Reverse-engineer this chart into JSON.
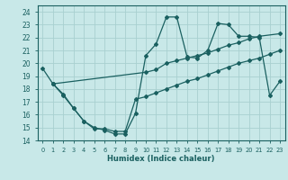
{
  "title": "",
  "xlabel": "Humidex (Indice chaleur)",
  "bg_color": "#c8e8e8",
  "grid_color": "#a8d0d0",
  "line_color": "#1a6060",
  "xlim": [
    -0.5,
    23.5
  ],
  "ylim": [
    14,
    24.5
  ],
  "yticks": [
    14,
    15,
    16,
    17,
    18,
    19,
    20,
    21,
    22,
    23,
    24
  ],
  "xticks": [
    0,
    1,
    2,
    3,
    4,
    5,
    6,
    7,
    8,
    9,
    10,
    11,
    12,
    13,
    14,
    15,
    16,
    17,
    18,
    19,
    20,
    21,
    22,
    23
  ],
  "line1_x": [
    0,
    1,
    2,
    3,
    4,
    5,
    6,
    7,
    8,
    9,
    10,
    11,
    12,
    13,
    14,
    15,
    16,
    17,
    18,
    19,
    20,
    21,
    22,
    23
  ],
  "line1_y": [
    19.6,
    18.4,
    17.5,
    16.5,
    15.5,
    15.0,
    14.8,
    14.5,
    14.5,
    16.1,
    20.6,
    21.5,
    23.6,
    23.6,
    20.5,
    20.4,
    21.0,
    23.1,
    23.0,
    22.1,
    22.1,
    22.0,
    17.5,
    18.6
  ],
  "line2_x": [
    1,
    10,
    11,
    12,
    13,
    14,
    15,
    16,
    17,
    18,
    19,
    20,
    21,
    23
  ],
  "line2_y": [
    18.4,
    19.3,
    19.5,
    20.0,
    20.2,
    20.4,
    20.6,
    20.8,
    21.1,
    21.4,
    21.6,
    21.9,
    22.1,
    22.3
  ],
  "line3_x": [
    1,
    2,
    3,
    4,
    5,
    6,
    7,
    8,
    9,
    10,
    11,
    12,
    13,
    14,
    15,
    16,
    17,
    18,
    19,
    20,
    21,
    22,
    23
  ],
  "line3_y": [
    18.4,
    17.6,
    16.5,
    15.5,
    14.9,
    14.9,
    14.7,
    14.7,
    17.2,
    17.4,
    17.7,
    18.0,
    18.3,
    18.6,
    18.8,
    19.1,
    19.4,
    19.7,
    20.0,
    20.2,
    20.4,
    20.7,
    21.0
  ]
}
